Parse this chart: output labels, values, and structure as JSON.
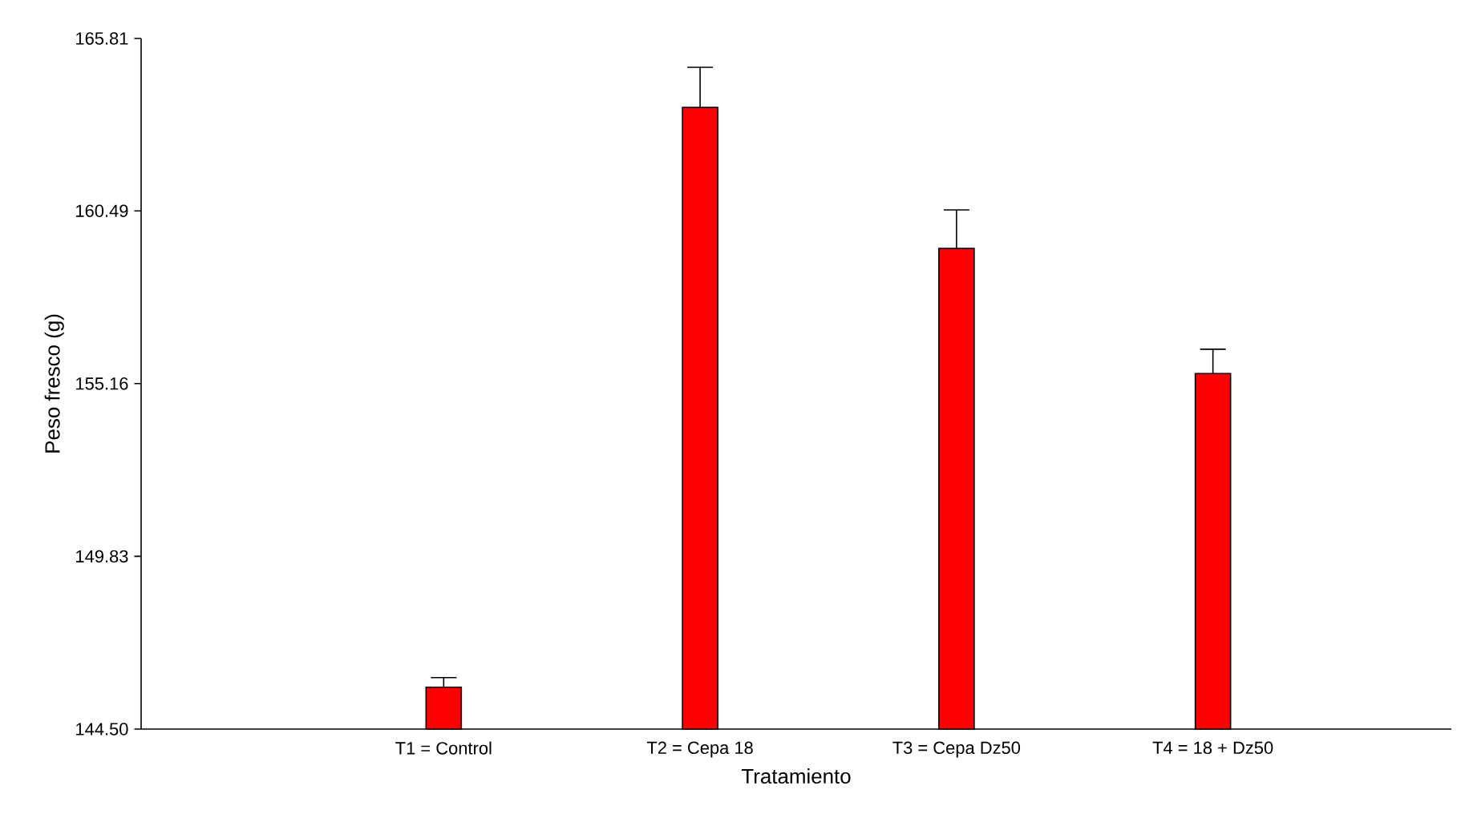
{
  "chart_data": {
    "type": "bar",
    "xlabel": "Tratamiento",
    "ylabel": "Peso fresco (g)",
    "categories": [
      "T1 = Control",
      "T2 = Cepa 18",
      "T3 = Cepa Dz50",
      "T4 = 18 + Dz50"
    ],
    "values": [
      145.79,
      163.68,
      159.33,
      155.47
    ],
    "errors": [
      0.3,
      1.24,
      1.19,
      0.75
    ],
    "color": "#ff0000",
    "ylim": [
      144.5,
      165.81
    ],
    "yticks": [
      {
        "value": 144.5,
        "label": "144.50"
      },
      149.83,
      155.16,
      160.49,
      165.81
    ]
  }
}
